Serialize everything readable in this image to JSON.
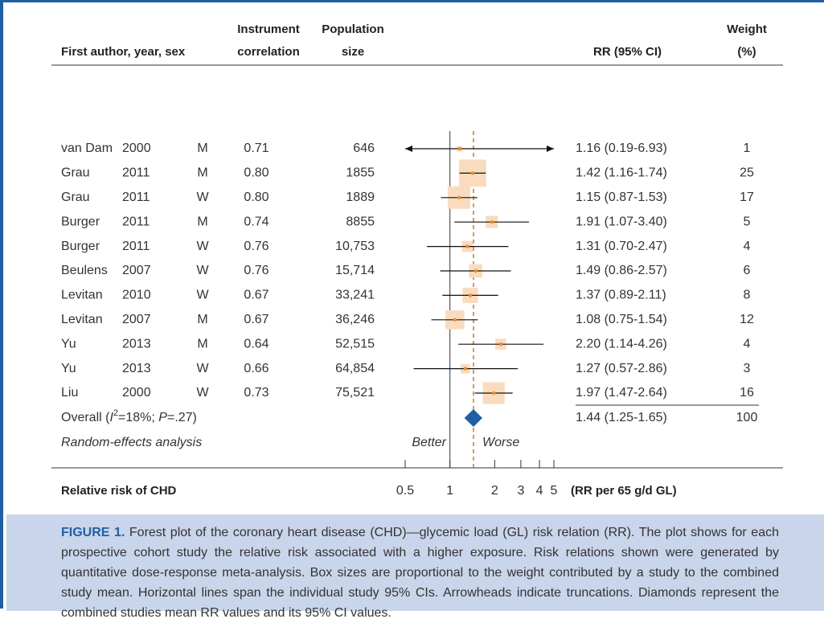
{
  "chart_data": {
    "type": "forest",
    "columns": {
      "author": "First author, year, sex",
      "correlation": [
        "Instrument",
        "correlation"
      ],
      "population": [
        "Population",
        "size"
      ],
      "rr": "RR (95% CI)",
      "weight": [
        "Weight",
        "(%)"
      ]
    },
    "studies": [
      {
        "author": "van Dam",
        "year": 2000,
        "sex": "M",
        "correlation": "0.71",
        "population": "646",
        "rr": 1.16,
        "lo": 0.19,
        "hi": 6.93,
        "label": "1.16 (0.19-6.93)",
        "weight": 1
      },
      {
        "author": "Grau",
        "year": 2011,
        "sex": "M",
        "correlation": "0.80",
        "population": "1855",
        "rr": 1.42,
        "lo": 1.16,
        "hi": 1.74,
        "label": "1.42 (1.16-1.74)",
        "weight": 25
      },
      {
        "author": "Grau",
        "year": 2011,
        "sex": "W",
        "correlation": "0.80",
        "population": "1889",
        "rr": 1.15,
        "lo": 0.87,
        "hi": 1.53,
        "label": "1.15 (0.87-1.53)",
        "weight": 17
      },
      {
        "author": "Burger",
        "year": 2011,
        "sex": "M",
        "correlation": "0.74",
        "population": "8855",
        "rr": 1.91,
        "lo": 1.07,
        "hi": 3.4,
        "label": "1.91 (1.07-3.40)",
        "weight": 5
      },
      {
        "author": "Burger",
        "year": 2011,
        "sex": "W",
        "correlation": "0.76",
        "population": "10,753",
        "rr": 1.31,
        "lo": 0.7,
        "hi": 2.47,
        "label": "1.31 (0.70-2.47)",
        "weight": 4
      },
      {
        "author": "Beulens",
        "year": 2007,
        "sex": "W",
        "correlation": "0.76",
        "population": "15,714",
        "rr": 1.49,
        "lo": 0.86,
        "hi": 2.57,
        "label": "1.49 (0.86-2.57)",
        "weight": 6
      },
      {
        "author": "Levitan",
        "year": 2010,
        "sex": "W",
        "correlation": "0.67",
        "population": "33,241",
        "rr": 1.37,
        "lo": 0.89,
        "hi": 2.11,
        "label": "1.37 (0.89-2.11)",
        "weight": 8
      },
      {
        "author": "Levitan",
        "year": 2007,
        "sex": "M",
        "correlation": "0.67",
        "population": "36,246",
        "rr": 1.08,
        "lo": 0.75,
        "hi": 1.54,
        "label": "1.08 (0.75-1.54)",
        "weight": 12
      },
      {
        "author": "Yu",
        "year": 2013,
        "sex": "M",
        "correlation": "0.64",
        "population": "52,515",
        "rr": 2.2,
        "lo": 1.14,
        "hi": 4.26,
        "label": "2.20 (1.14-4.26)",
        "weight": 4
      },
      {
        "author": "Yu",
        "year": 2013,
        "sex": "W",
        "correlation": "0.66",
        "population": "64,854",
        "rr": 1.27,
        "lo": 0.57,
        "hi": 2.86,
        "label": "1.27 (0.57-2.86)",
        "weight": 3
      },
      {
        "author": "Liu",
        "year": 2000,
        "sex": "W",
        "correlation": "0.73",
        "population": "75,521",
        "rr": 1.97,
        "lo": 1.47,
        "hi": 2.64,
        "label": "1.97 (1.47-2.64)",
        "weight": 16
      }
    ],
    "overall": {
      "label": [
        "Overall (",
        "I",
        "2",
        "=18%; ",
        "P",
        "=.27)"
      ],
      "rr": 1.44,
      "lo": 1.25,
      "hi": 1.65,
      "ci_label": "1.44 (1.25-1.65)",
      "weight": 100
    },
    "method": "Random-effects analysis",
    "better": "Better",
    "worse": "Worse",
    "xlabel": "Relative risk of CHD",
    "xunit": "(RR per 65 g/d GL)",
    "log": true,
    "xlim": [
      0.5,
      5
    ],
    "xticks": [
      0.5,
      1,
      2,
      3,
      4,
      5
    ],
    "box_color": "#f9dcc0",
    "point_color": "#f08a24",
    "diamond_color": "#1f5fa5",
    "reference_color": "#c8782c"
  },
  "caption": {
    "label": "FIGURE 1.",
    "text": "Forest plot of the coronary heart disease (CHD)—glycemic load (GL) risk relation (RR). The plot shows for each prospective cohort study the relative risk associated with a higher exposure. Risk relations shown were generated by quantitative dose-response meta-analysis. Box sizes are proportional to the weight contributed by a study to the combined study mean. Horizontal lines span the individual study 95% CIs. Arrowheads indicate truncations. Diamonds represent the combined studies mean RR values and its 95% CI values."
  }
}
